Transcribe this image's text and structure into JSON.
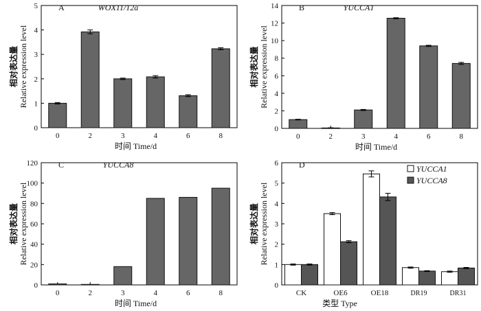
{
  "chart_data": [
    {
      "type": "bar",
      "letter": "A",
      "title": "WOX11/12a",
      "ylabel_cn": "相对表达量",
      "ylabel": "Relative expression level",
      "xlabel": "时间 Time/d",
      "categories": [
        "0",
        "2",
        "3",
        "4",
        "6",
        "8"
      ],
      "values": [
        1.0,
        3.92,
        2.0,
        2.08,
        1.31,
        3.23
      ],
      "errors": [
        0.03,
        0.08,
        0.03,
        0.05,
        0.04,
        0.04
      ],
      "ylim": [
        0,
        5
      ],
      "yticks": [
        0,
        1,
        2,
        3,
        4,
        5
      ],
      "bar_color": "#666666"
    },
    {
      "type": "bar",
      "letter": "B",
      "title": "YUCCA1",
      "ylabel_cn": "相对表达量",
      "ylabel": "Relative expression level",
      "xlabel": "时间 Time/d",
      "categories": [
        "0",
        "2",
        "3",
        "4",
        "6",
        "8"
      ],
      "values": [
        1.0,
        0.05,
        2.1,
        12.55,
        9.4,
        7.4
      ],
      "errors": [
        0.04,
        0.02,
        0.06,
        0.06,
        0.07,
        0.12
      ],
      "ylim": [
        0,
        14
      ],
      "yticks": [
        0,
        2,
        4,
        6,
        8,
        10,
        12,
        14
      ],
      "bar_color": "#666666"
    },
    {
      "type": "bar",
      "letter": "C",
      "title": "YUCCA8",
      "ylabel_cn": "相对表达量",
      "ylabel": "Relative expression level",
      "xlabel": "时间 Time/d",
      "categories": [
        "0",
        "2",
        "3",
        "4",
        "6",
        "8"
      ],
      "values": [
        1.0,
        0.5,
        18,
        85,
        86,
        95
      ],
      "errors": [
        0,
        0,
        0,
        0,
        0,
        0
      ],
      "ylim": [
        0,
        120
      ],
      "yticks": [
        0,
        20,
        40,
        60,
        80,
        100,
        120
      ],
      "bar_color": "#666666"
    },
    {
      "type": "bar",
      "letter": "D",
      "ylabel_cn": "相对表达量",
      "ylabel": "Relative expression level",
      "xlabel": "类型 Type",
      "categories": [
        "CK",
        "OE6",
        "OE18",
        "DR19",
        "DR31"
      ],
      "ylim": [
        0,
        6
      ],
      "yticks": [
        0,
        1,
        2,
        3,
        4,
        5,
        6
      ],
      "series": [
        {
          "name": "YUCCA1",
          "values": [
            1.0,
            3.5,
            5.45,
            0.85,
            0.65
          ],
          "errors": [
            0.03,
            0.05,
            0.15,
            0.03,
            0.03
          ],
          "color": "#ffffff"
        },
        {
          "name": "YUCCA8",
          "values": [
            1.0,
            2.12,
            4.32,
            0.68,
            0.83
          ],
          "errors": [
            0.03,
            0.05,
            0.18,
            0.02,
            0.03
          ],
          "color": "#555555"
        }
      ],
      "legend": "top-right"
    }
  ]
}
